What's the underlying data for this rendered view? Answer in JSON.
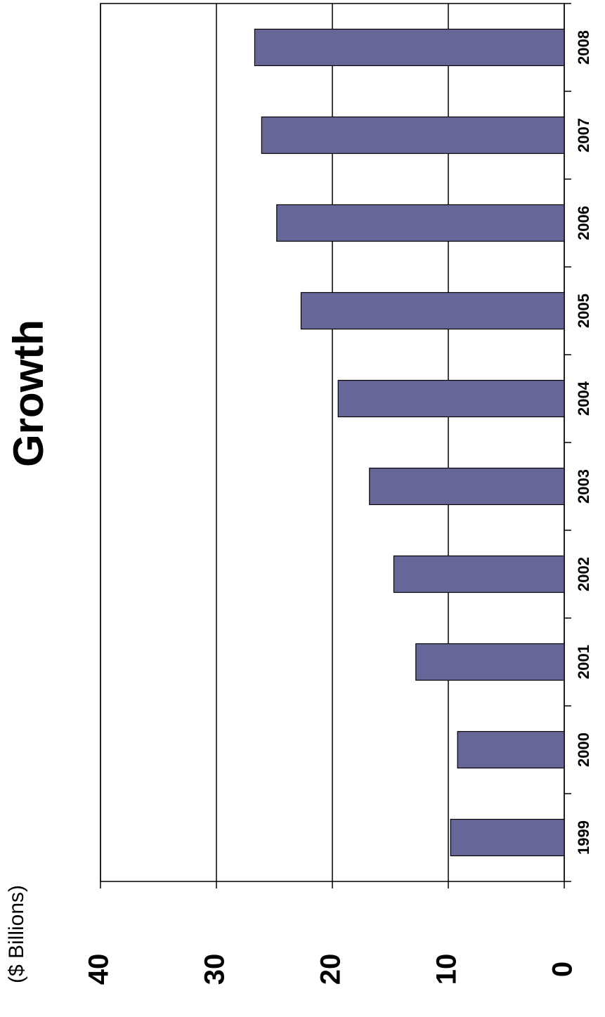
{
  "chart_data": {
    "type": "bar",
    "orientation": "horizontal",
    "rotated": true,
    "title": "Growth",
    "ylabel": "($ Billions)",
    "categories": [
      "1999",
      "2000",
      "2001",
      "2002",
      "2003",
      "2004",
      "2005",
      "2006",
      "2007",
      "2008"
    ],
    "values": [
      9.8,
      9.2,
      12.8,
      14.7,
      16.8,
      19.5,
      22.7,
      24.8,
      26.1,
      26.7
    ],
    "color": "#666699",
    "ylim": [
      0,
      40
    ],
    "yticks": [
      0,
      10,
      20,
      30,
      40
    ],
    "grid": true
  }
}
